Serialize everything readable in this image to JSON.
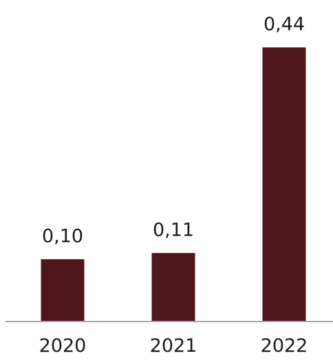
{
  "chart_data": {
    "type": "bar",
    "categories": [
      "2020",
      "2021",
      "2022"
    ],
    "values": [
      0.1,
      0.11,
      0.44
    ],
    "value_labels": [
      "0,10",
      "0,11",
      "0,44"
    ],
    "title": "",
    "xlabel": "",
    "ylabel": "",
    "ylim": [
      0,
      0.44
    ],
    "grid": false,
    "legend": "none",
    "colors": {
      "bar": "#4f161b",
      "axis": "#a6a6a6",
      "text": "#1a1a1a"
    }
  }
}
